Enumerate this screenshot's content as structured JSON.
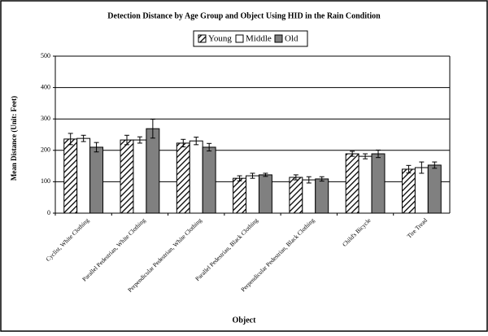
{
  "chart_data": {
    "type": "bar",
    "title": "Detection Distance by Age Group and Object Using HID in the Rain Condition",
    "x_label": "Object",
    "y_label": "Mean Distance (Unit: Feet)",
    "categories": [
      "Cyclist, White Clothing",
      "Parallel Pedestrian, White Clothing",
      "Perpendicular Pedestrian, White Clothing",
      "Parallel Pedestrian, Black Clothing",
      "Perpendicular Pedestrian, Black Clothing",
      "Child's Bicycle",
      "Tire Tread"
    ],
    "series": [
      {
        "name": "Young",
        "color": "#ffffff",
        "pattern": "hatch",
        "values": [
          236,
          233,
          223,
          111,
          114,
          189,
          140
        ],
        "errors": [
          18,
          15,
          12,
          8,
          8,
          8,
          12
        ]
      },
      {
        "name": "Middle",
        "color": "#ffffff",
        "values": [
          238,
          233,
          230,
          119,
          106,
          181,
          145
        ],
        "errors": [
          10,
          10,
          12,
          8,
          10,
          8,
          18
        ]
      },
      {
        "name": "Old",
        "color": "#808080",
        "values": [
          210,
          269,
          210,
          122,
          109,
          189,
          153
        ],
        "errors": [
          15,
          30,
          12,
          5,
          7,
          12,
          10
        ]
      }
    ],
    "ylim": [
      0,
      500
    ],
    "yticks": [
      0,
      100,
      200,
      300,
      400,
      500
    ],
    "grid": true,
    "legend": "top"
  }
}
